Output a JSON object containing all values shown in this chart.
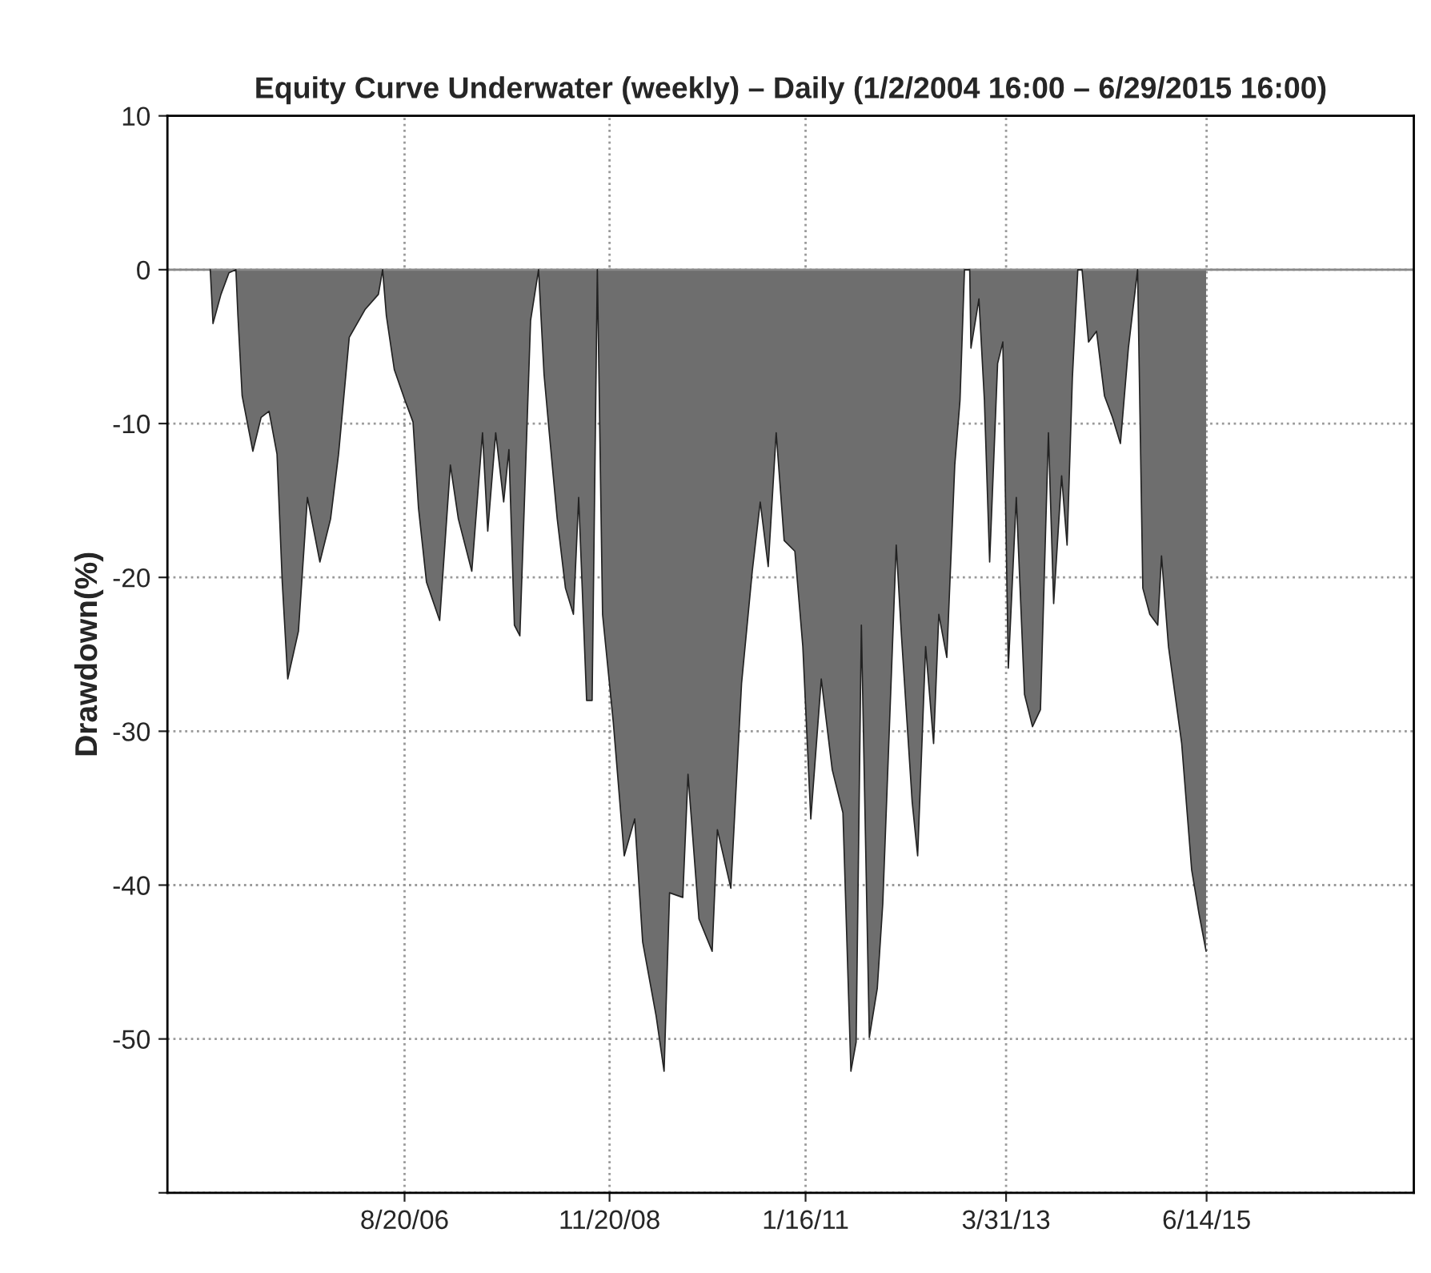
{
  "chart_data": {
    "type": "area",
    "title": "Equity Curve Underwater (weekly) – Daily (1/2/2004 16:00 – 6/29/2015 16:00)",
    "ylabel": "Drawdown(%)",
    "x": [
      "2004-07-01",
      "2004-07-12",
      "2004-08-13",
      "2004-09-14",
      "2004-10-12",
      "2004-10-20",
      "2004-11-06",
      "2004-12-19",
      "2005-01-21",
      "2005-02-22",
      "2005-03-26",
      "2005-04-16",
      "2005-05-08",
      "2005-06-20",
      "2005-07-26",
      "2005-09-14",
      "2005-10-27",
      "2005-11-28",
      "2006-01-10",
      "2006-03-14",
      "2006-05-07",
      "2006-05-24",
      "2006-06-08",
      "2006-07-10",
      "2006-08-22",
      "2006-09-23",
      "2006-10-15",
      "2006-11-16",
      "2007-01-08",
      "2007-02-20",
      "2007-03-24",
      "2007-05-17",
      "2007-06-29",
      "2007-07-20",
      "2007-08-21",
      "2007-09-22",
      "2007-10-13",
      "2007-11-04",
      "2007-11-26",
      "2008-01-08",
      "2008-02-09",
      "2008-03-02",
      "2008-03-23",
      "2008-04-24",
      "2008-05-27",
      "2008-06-28",
      "2008-07-19",
      "2008-08-20",
      "2008-09-11",
      "2008-10-02",
      "2008-10-23",
      "2008-12-05",
      "2009-01-18",
      "2009-03-01",
      "2009-04-02",
      "2009-05-26",
      "2009-06-27",
      "2009-07-19",
      "2009-09-10",
      "2009-10-01",
      "2009-11-14",
      "2010-01-06",
      "2010-01-27",
      "2010-03-22",
      "2010-05-04",
      "2010-06-16",
      "2010-07-18",
      "2010-08-19",
      "2010-09-20",
      "2010-10-22",
      "2010-12-04",
      "2011-01-05",
      "2011-02-06",
      "2011-03-20",
      "2011-05-03",
      "2011-06-15",
      "2011-07-17",
      "2011-08-07",
      "2011-08-28",
      "2011-09-29",
      "2011-10-31",
      "2011-11-22",
      "2012-01-15",
      "2012-02-05",
      "2012-03-19",
      "2012-04-10",
      "2012-05-12",
      "2012-06-13",
      "2012-07-04",
      "2012-08-05",
      "2012-09-06",
      "2012-09-27",
      "2012-10-15",
      "2012-11-05",
      "2012-11-10",
      "2012-12-12",
      "2013-01-03",
      "2013-01-24",
      "2013-02-25",
      "2013-03-18",
      "2013-04-09",
      "2013-05-11",
      "2013-06-13",
      "2013-07-15",
      "2013-08-16",
      "2013-09-17",
      "2013-10-08",
      "2013-11-09",
      "2013-12-01",
      "2013-12-22",
      "2014-01-13",
      "2014-01-30",
      "2014-02-25",
      "2014-03-29",
      "2014-04-30",
      "2014-06-01",
      "2014-07-03",
      "2014-08-04",
      "2014-09-10",
      "2014-10-01",
      "2014-10-29",
      "2014-11-30",
      "2014-12-15",
      "2015-01-12",
      "2015-02-13",
      "2015-03-06",
      "2015-04-15",
      "2015-05-15",
      "2015-06-12"
    ],
    "series": [
      {
        "color": "#6e6e6e",
        "values": [
          0,
          -3.5,
          -1.6,
          -0.2,
          0,
          -3,
          -8.2,
          -11.8,
          -9.6,
          -9.2,
          -12,
          -20.3,
          -26.6,
          -23.5,
          -14.8,
          -19,
          -16.2,
          -12,
          -4.4,
          -2.6,
          -1.6,
          0,
          -3,
          -6.5,
          -8.5,
          -9.9,
          -15.5,
          -20.3,
          -22.8,
          -12.7,
          -16.2,
          -19.6,
          -10.6,
          -17,
          -10.6,
          -15.1,
          -11.7,
          -23.1,
          -23.8,
          -3.3,
          0,
          -6.8,
          -10.6,
          -16.2,
          -20.7,
          -22.4,
          -14.8,
          -28,
          -28,
          0,
          -22.4,
          -29.4,
          -38.1,
          -35.7,
          -43.7,
          -48.5,
          -52.1,
          -40.5,
          -40.8,
          -32.8,
          -42.2,
          -44.3,
          -36.4,
          -40.2,
          -26.9,
          -19.6,
          -15.1,
          -19.3,
          -10.6,
          -17.6,
          -18.3,
          -24.5,
          -35.7,
          -26.6,
          -32.5,
          -35.3,
          -52.1,
          -50.2,
          -23.1,
          -49.9,
          -46.7,
          -41.2,
          -17.9,
          -23.8,
          -34.6,
          -38.1,
          -24.5,
          -30.8,
          -22.4,
          -25.2,
          -12.7,
          -8.5,
          0,
          0,
          -5.1,
          -1.9,
          -8.5,
          -19,
          -6.1,
          -4.7,
          -25.9,
          -14.8,
          -27.6,
          -29.7,
          -28.6,
          -10.6,
          -21.7,
          -13.4,
          -17.9,
          -7.1,
          0,
          0,
          -4.7,
          -4,
          -8.2,
          -9.6,
          -11.3,
          -5.1,
          0,
          -20.7,
          -22.4,
          -23.1,
          -18.6,
          -24.5,
          -28.3,
          -30.8,
          -39,
          -41.9,
          -44.3
        ]
      }
    ],
    "xlim": [
      "2004-01-11",
      "2017-09-23"
    ],
    "xticks": [
      {
        "value": "2006-08-20",
        "label": "8/20/06"
      },
      {
        "value": "2008-11-20",
        "label": "11/20/08"
      },
      {
        "value": "2011-01-16",
        "label": "1/16/11"
      },
      {
        "value": "2013-03-31",
        "label": "3/31/13"
      },
      {
        "value": "2015-06-14",
        "label": "6/14/15"
      }
    ],
    "ylim": [
      -60,
      10
    ],
    "yticks": [
      10,
      0,
      -10,
      -20,
      -30,
      -40,
      -50,
      {
        "value": -60,
        "label": null
      }
    ],
    "ref_lines": [
      {
        "axis": "y",
        "value": 0,
        "color": "#888888"
      }
    ],
    "grid": true
  }
}
